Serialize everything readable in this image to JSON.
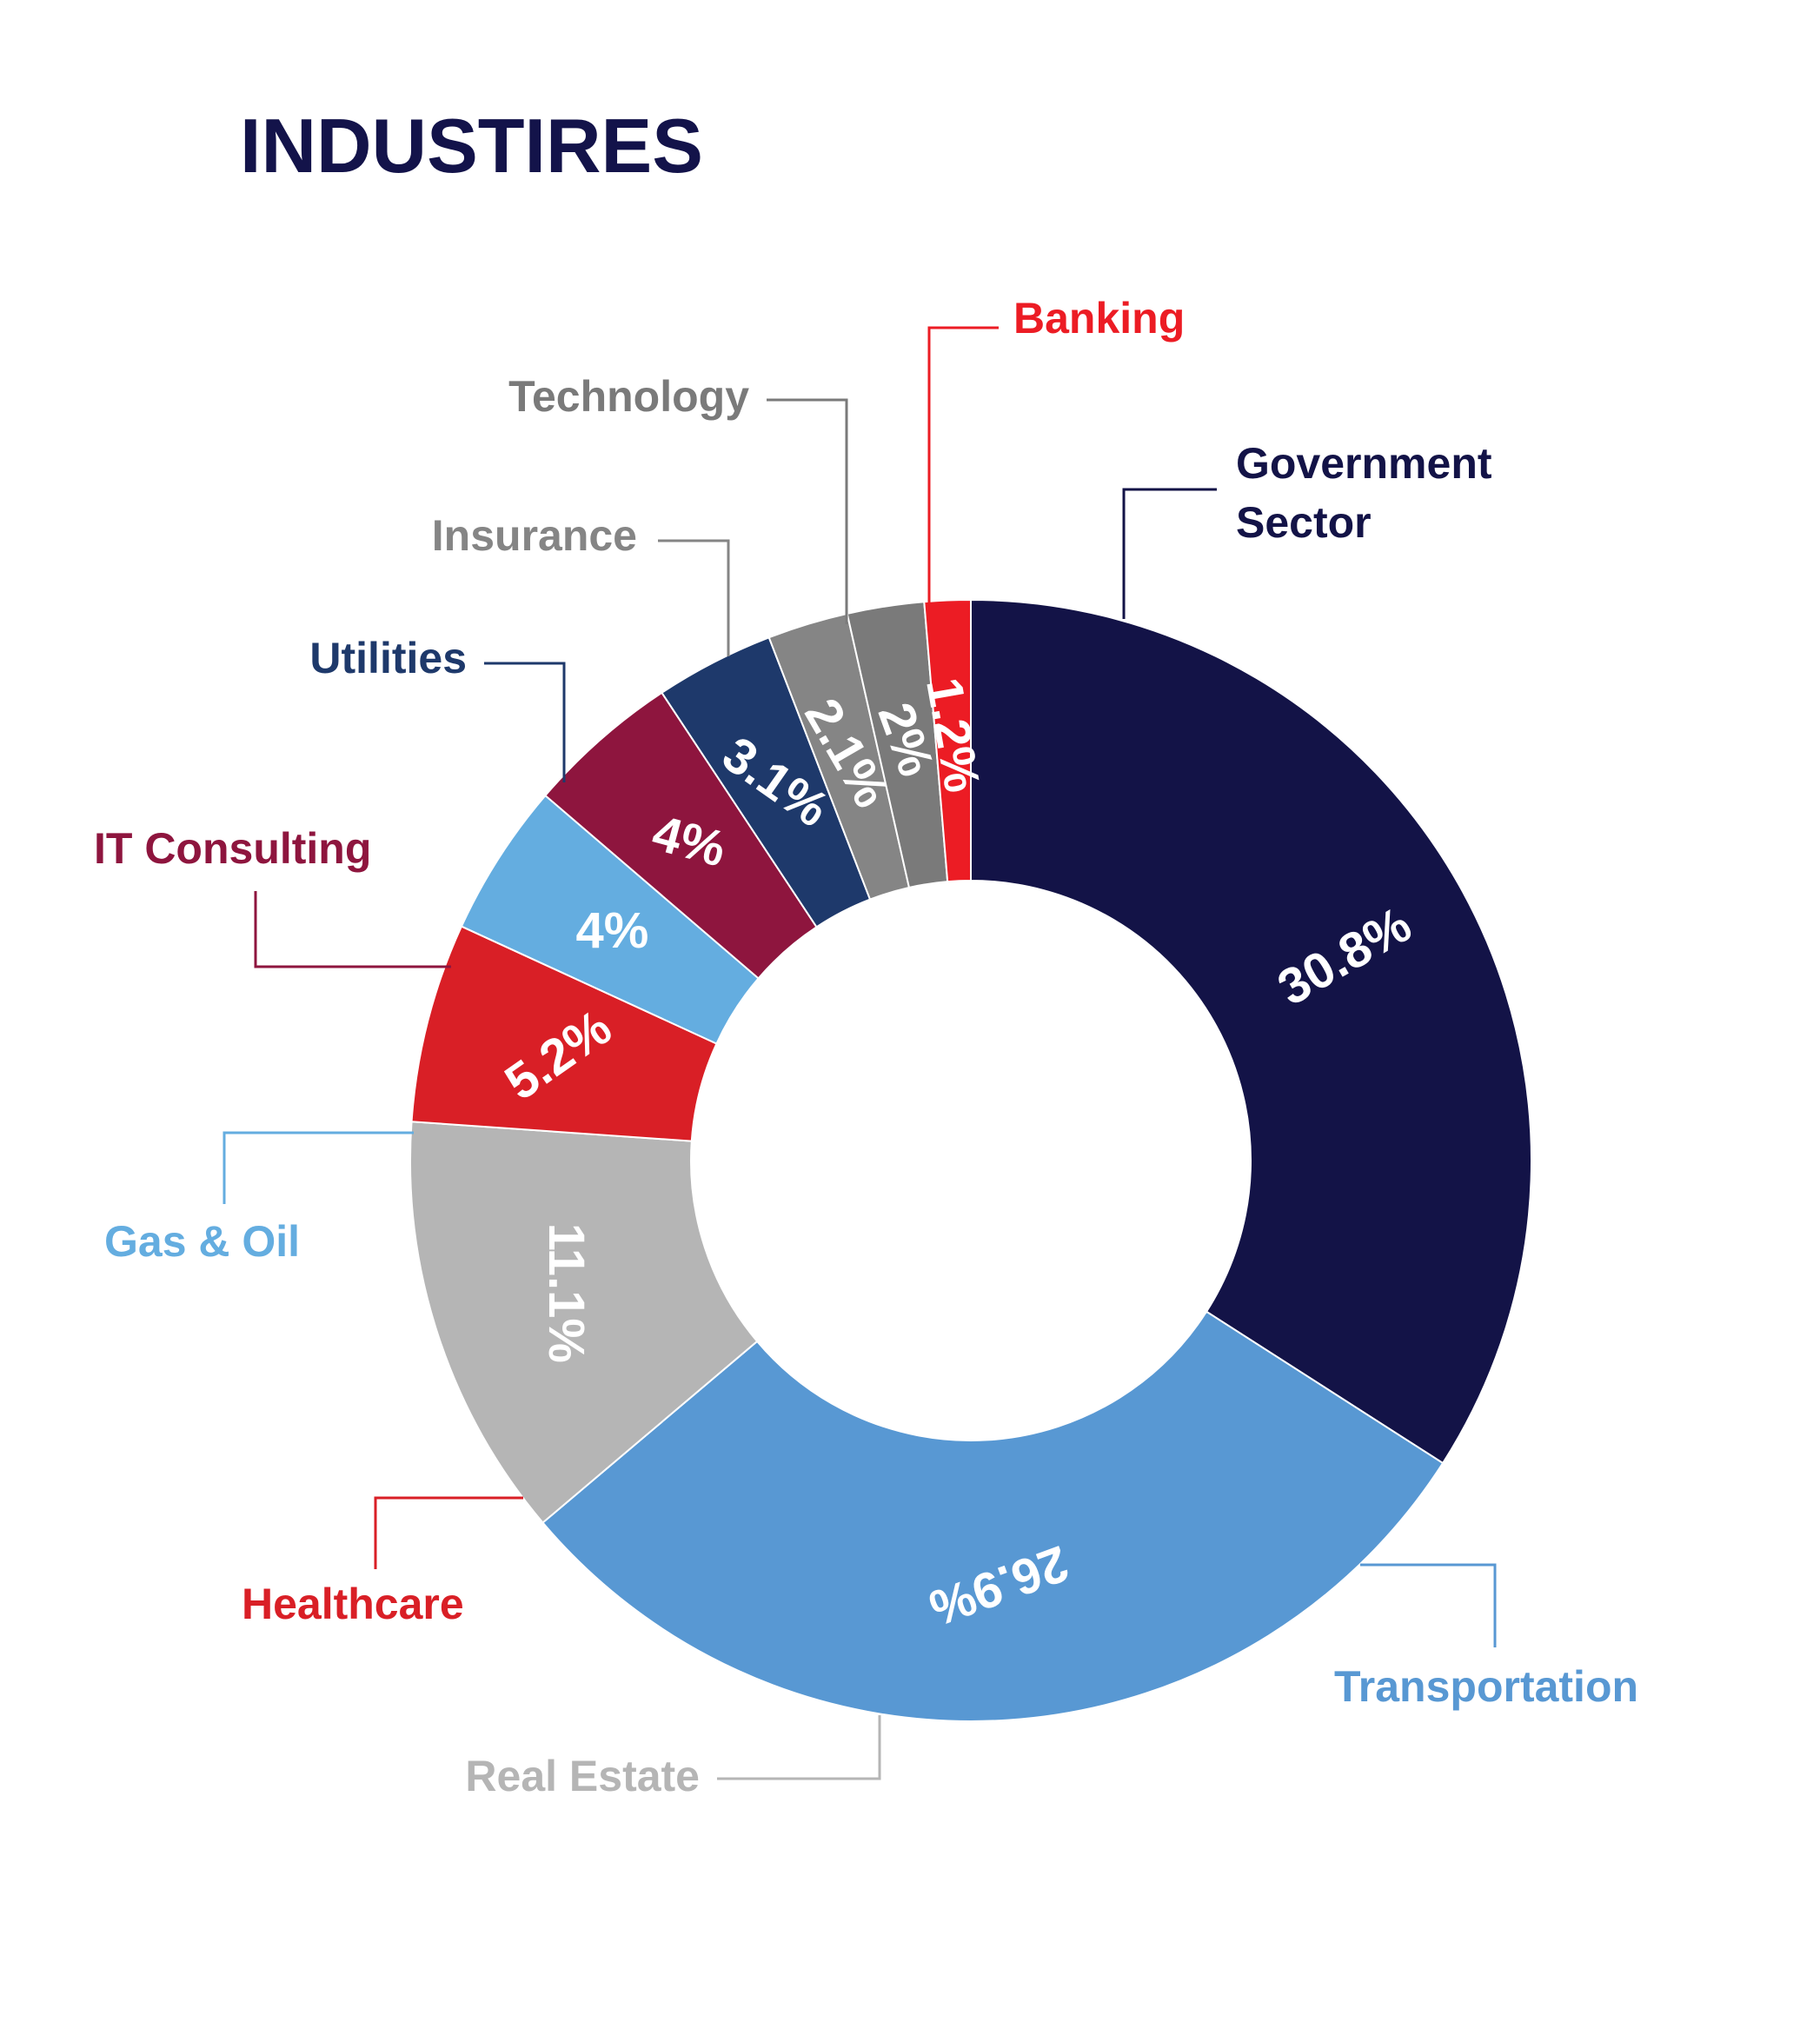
{
  "chart_data": {
    "type": "pie",
    "title": "INDUSTIRES",
    "title_color": "#13134a",
    "segments": [
      {
        "name": "Government Sector",
        "name_lines": [
          "Government",
          "Sector"
        ],
        "value": 30.8,
        "value_label": "30.8%",
        "color": "#131347",
        "label_color": "#131347"
      },
      {
        "name": "Transportation",
        "name_lines": [
          "Transportation"
        ],
        "value": 26.9,
        "value_label": "26.9%",
        "color": "#5898d3",
        "label_color": "#5898d3"
      },
      {
        "name": "Real Estate",
        "name_lines": [
          "Real Estate"
        ],
        "value": 11.1,
        "value_label": "11.1%",
        "color": "#b5b5b5",
        "label_color": "#b5b5b5"
      },
      {
        "name": "Healthcare",
        "name_lines": [
          "Healthcare"
        ],
        "value": 5.2,
        "value_label": "5.2%",
        "color": "#d91f26",
        "label_color": "#d91f26"
      },
      {
        "name": "Gas & Oil",
        "name_lines": [
          "Gas & Oil"
        ],
        "value": 4,
        "value_label": "4%",
        "color": "#64ade0",
        "label_color": "#64ade0"
      },
      {
        "name": "IT Consulting",
        "name_lines": [
          "IT Consulting"
        ],
        "value": 4,
        "value_label": "4%",
        "color": "#8e153e",
        "label_color": "#8e153e"
      },
      {
        "name": "Utilities",
        "name_lines": [
          "Utilities"
        ],
        "value": 3.1,
        "value_label": "3.1%",
        "color": "#1e396b",
        "label_color": "#1e396b"
      },
      {
        "name": "Insurance",
        "name_lines": [
          "Insurance"
        ],
        "value": 2.1,
        "value_label": "2.1%",
        "color": "#858585",
        "label_color": "#858585"
      },
      {
        "name": "Technology",
        "name_lines": [
          "Technology"
        ],
        "value": 2,
        "value_label": "2%",
        "color": "#7a7a7a",
        "label_color": "#7a7a7a"
      },
      {
        "name": "Banking",
        "name_lines": [
          "Banking"
        ],
        "value": 1.2,
        "value_label": "1.2%",
        "color": "#ec1c24",
        "label_color": "#ec1c24"
      }
    ]
  }
}
